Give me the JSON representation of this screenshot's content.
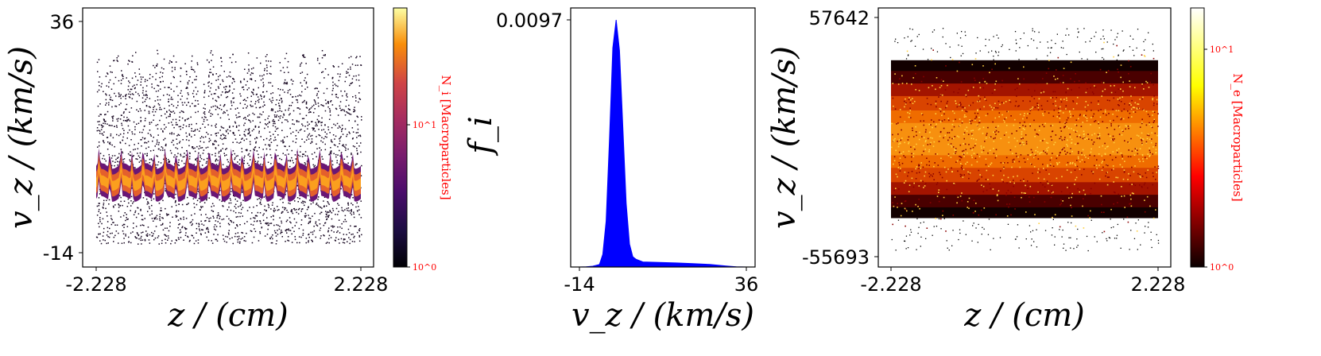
{
  "chart_data": [
    {
      "type": "heatmap",
      "title": "",
      "xlabel": "z / (cm)",
      "ylabel": "v_z / (km/s)",
      "xlim": [
        -2.228,
        2.228
      ],
      "ylim": [
        -14,
        36
      ],
      "xticks": [
        "-2.228",
        "2.228"
      ],
      "yticks": [
        "-14",
        "36"
      ],
      "colormap": "inferno",
      "colorbar": {
        "label": "N_i [Macroparticles]",
        "scale": "log",
        "range": [
          1,
          50
        ],
        "ticks": [
          "10^0",
          "10^1"
        ]
      },
      "features": {
        "core_band_center_vz": 1,
        "core_band_halfwidth_vz": 2.5,
        "tail_max_vz": 36,
        "tail_min_vz": -12,
        "spike_count": 24
      }
    },
    {
      "type": "bar",
      "title": "",
      "xlabel": "v_z / (km/s)",
      "ylabel": "f_i",
      "xlim": [
        -14,
        36
      ],
      "ylim": [
        0,
        0.0097
      ],
      "xticks": [
        "-14",
        "36"
      ],
      "yticks": [
        "0.0097"
      ],
      "color": "#0000ff",
      "peak": {
        "x": -3,
        "y": 0.0097
      },
      "x": [
        -14,
        -12,
        -10,
        -8,
        -7,
        -6,
        -5,
        -4,
        -3,
        -2,
        -1,
        0,
        1,
        2,
        3,
        5,
        10,
        15,
        20,
        25,
        30,
        33,
        36
      ],
      "y": [
        0,
        1e-05,
        3e-05,
        0.0001,
        0.0005,
        0.0018,
        0.005,
        0.0086,
        0.0097,
        0.0085,
        0.0055,
        0.0025,
        0.0009,
        0.0004,
        0.0003,
        0.0002,
        0.00018,
        0.00016,
        0.00013,
        0.0001,
        4e-05,
        1e-05,
        0
      ]
    },
    {
      "type": "heatmap",
      "title": "",
      "xlabel": "z / (cm)",
      "ylabel": "v_z / (km/s)",
      "xlim": [
        -2.228,
        2.228
      ],
      "ylim": [
        -55693,
        57642
      ],
      "xticks": [
        "-2.228",
        "2.228"
      ],
      "yticks": [
        "-55693",
        "57642"
      ],
      "colormap": "hot",
      "colorbar": {
        "label": "N_e [Macroparticles]",
        "scale": "log",
        "range": [
          1,
          20
        ],
        "ticks": [
          "10^0",
          "10^1"
        ]
      },
      "features": {
        "band_center_vz": 0,
        "band_sigma_vz": 17000
      }
    }
  ]
}
